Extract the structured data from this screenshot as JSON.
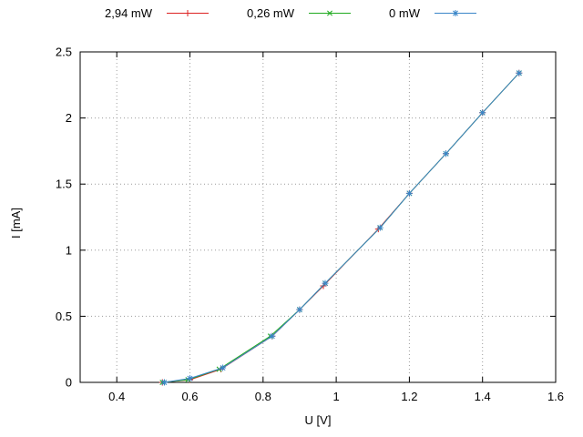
{
  "chart_data": {
    "type": "line",
    "title": "",
    "xlabel": "U [V]",
    "ylabel": "I [mA]",
    "xlim": [
      0.3,
      1.6
    ],
    "ylim": [
      0,
      2.5
    ],
    "xticks": [
      0.4,
      0.6,
      0.8,
      1.0,
      1.2,
      1.4,
      1.6
    ],
    "xtick_labels": [
      "0.4",
      "0.6",
      "0.8",
      "1",
      "1.2",
      "1.4",
      "1.6"
    ],
    "yticks": [
      0,
      0.5,
      1.0,
      1.5,
      2.0,
      2.5
    ],
    "ytick_labels": [
      "0",
      "0.5",
      "1",
      "1.5",
      "2",
      "2.5"
    ],
    "grid": true,
    "legend_position": "top-outside-horizontal",
    "background_color": "#ffffff",
    "series": [
      {
        "name": "2,94 mW",
        "color": "#dd2222",
        "marker": "plus",
        "points": [
          [
            0.525,
            0.0
          ],
          [
            0.6,
            0.02
          ],
          [
            0.685,
            0.1
          ],
          [
            0.825,
            0.35
          ],
          [
            0.9,
            0.55
          ],
          [
            0.965,
            0.73
          ],
          [
            1.115,
            1.16
          ],
          [
            1.2,
            1.43
          ],
          [
            1.3,
            1.73
          ],
          [
            1.4,
            2.04
          ],
          [
            1.5,
            2.34
          ]
        ]
      },
      {
        "name": "0,26 mW",
        "color": "#1faa1f",
        "marker": "cross",
        "points": [
          [
            0.525,
            0.0
          ],
          [
            0.595,
            0.02
          ],
          [
            0.68,
            0.1
          ],
          [
            0.82,
            0.35
          ],
          [
            0.9,
            0.55
          ],
          [
            0.97,
            0.75
          ],
          [
            1.12,
            1.17
          ],
          [
            1.2,
            1.43
          ],
          [
            1.3,
            1.73
          ],
          [
            1.4,
            2.04
          ],
          [
            1.5,
            2.34
          ]
        ]
      },
      {
        "name": "0 mW",
        "color": "#3a86c8",
        "marker": "asterisk",
        "points": [
          [
            0.53,
            0.0
          ],
          [
            0.6,
            0.03
          ],
          [
            0.69,
            0.11
          ],
          [
            0.825,
            0.35
          ],
          [
            0.9,
            0.55
          ],
          [
            0.97,
            0.75
          ],
          [
            1.12,
            1.17
          ],
          [
            1.2,
            1.43
          ],
          [
            1.3,
            1.73
          ],
          [
            1.4,
            2.04
          ],
          [
            1.5,
            2.34
          ]
        ]
      }
    ]
  }
}
